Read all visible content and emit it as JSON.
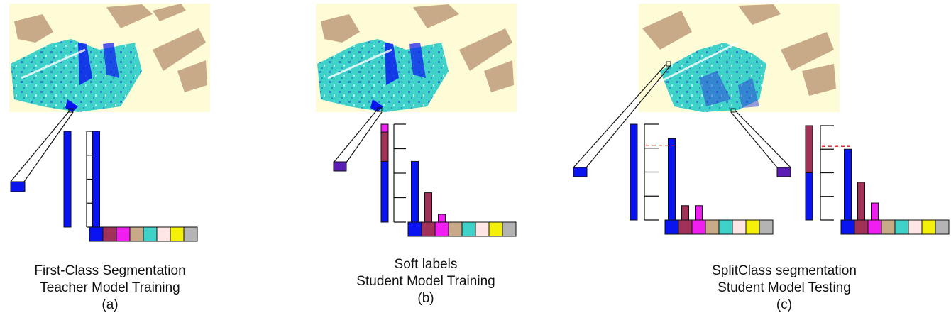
{
  "panels": [
    {
      "id": "a",
      "caption_lines": [
        "First-Class Segmentation",
        "Teacher Model Training"
      ],
      "caption_tag": "(a)",
      "stacked_bar": [
        {
          "class": "blue",
          "value": 1.0
        }
      ],
      "class_bars": [
        1.0,
        0,
        0,
        0,
        0,
        0,
        0,
        0
      ],
      "threshold": null,
      "pixel_color": "blue"
    },
    {
      "id": "b",
      "caption_lines": [
        "Soft labels",
        "Student Model Training"
      ],
      "caption_tag": "(b)",
      "stacked_bar": [
        {
          "class": "blue",
          "value": 0.62
        },
        {
          "class": "maroon",
          "value": 0.3
        },
        {
          "class": "magenta",
          "value": 0.08
        }
      ],
      "class_bars": [
        0.62,
        0.3,
        0.08,
        0,
        0,
        0,
        0,
        0
      ],
      "threshold": null,
      "pixel_color": "purple"
    },
    {
      "id": "c",
      "caption_lines": [
        "SplitClass segmentation",
        "Student Model Testing"
      ],
      "caption_tag": "(c)",
      "sub": [
        {
          "stacked_bar": [
            {
              "class": "blue",
              "value": 1.0
            }
          ],
          "class_bars": [
            0.85,
            0.15,
            0.15,
            0,
            0,
            0,
            0,
            0
          ],
          "threshold": 0.78,
          "pixel_color": "blue"
        },
        {
          "stacked_bar": [
            {
              "class": "blue",
              "value": 0.5
            },
            {
              "class": "maroon",
              "value": 0.5
            }
          ],
          "class_bars": [
            0.75,
            0.4,
            0.18,
            0,
            0,
            0,
            0,
            0
          ],
          "threshold": 0.78,
          "pixel_color": "purple"
        }
      ]
    }
  ],
  "class_palette": [
    "#0a14f0",
    "#a0325a",
    "#f01ef0",
    "#c8aa88",
    "#3ed2c8",
    "#ffe6e4",
    "#f5f00a",
    "#b4b4b4"
  ],
  "colors": {
    "blue": "#0a14f0",
    "maroon": "#a0325a",
    "magenta": "#f01ef0",
    "purple": "#5a1eb4",
    "threshold": "#d23232",
    "map_bg": "#fefcd6",
    "map_cyan": "#3ed2c8",
    "map_tan": "#c8aa88"
  }
}
